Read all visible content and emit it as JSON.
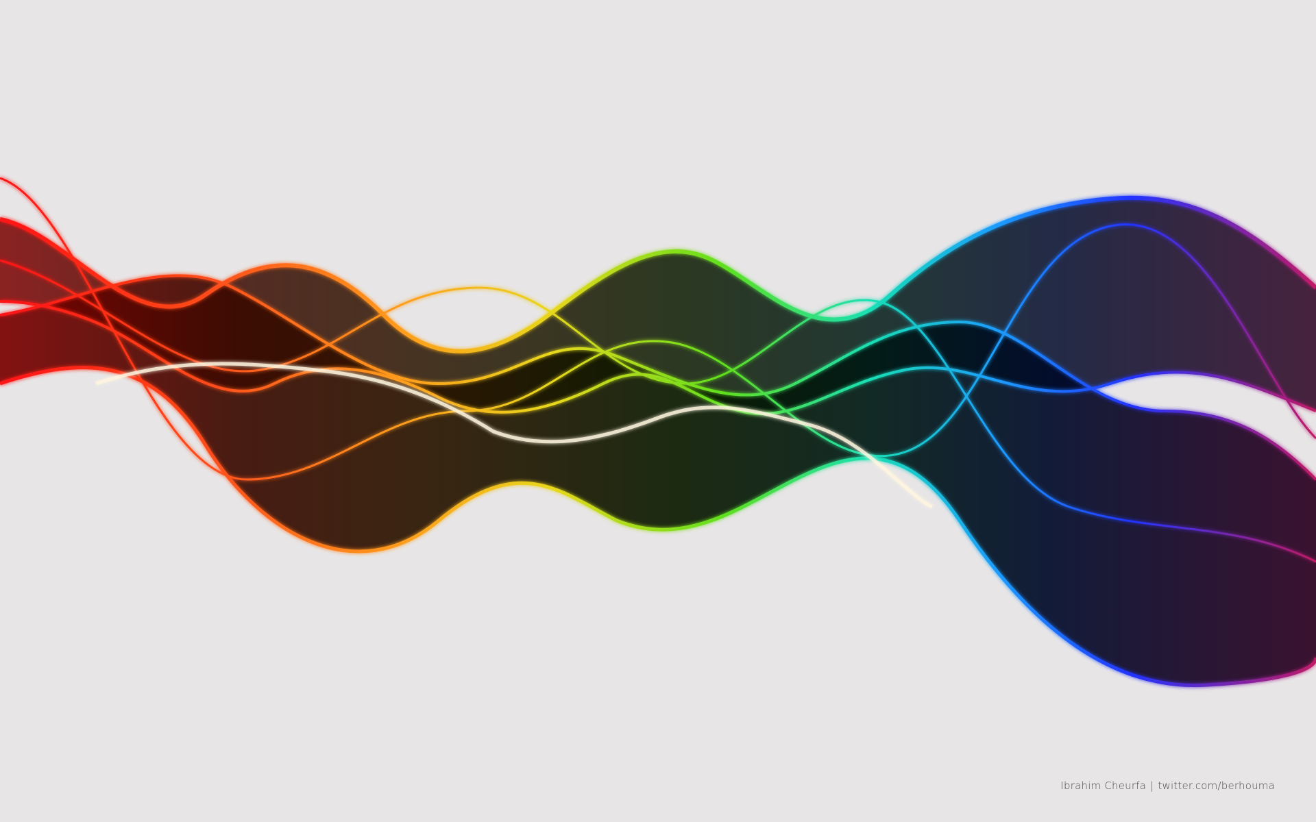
{
  "artwork": {
    "description_colors": [
      "#ff1a1a",
      "#ff6a1a",
      "#ffb21a",
      "#c8e619",
      "#5fe01e",
      "#1fe0b0",
      "#1a9bff",
      "#2233ff",
      "#8a1a8a"
    ],
    "background_color": "#e7e5e6"
  },
  "credit": {
    "author": "Ibrahim Cheurfa",
    "separator": "|",
    "link": "twitter.com/berhouma"
  }
}
